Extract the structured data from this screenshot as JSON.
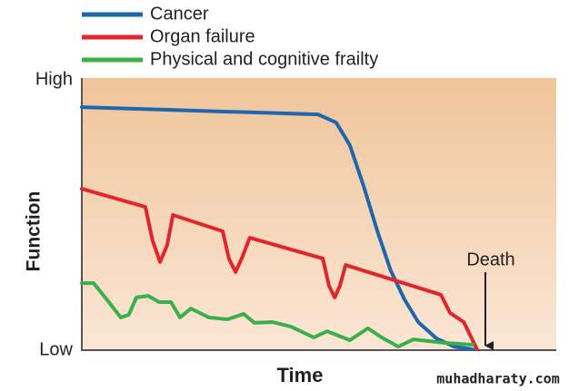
{
  "chart_data": {
    "type": "line",
    "x_label": "Time",
    "y_label": "Function",
    "xlim": [
      0,
      100
    ],
    "ylim": [
      0,
      100
    ],
    "yticks": [
      {
        "value": 100,
        "label": "High"
      },
      {
        "value": 0,
        "label": "Low"
      }
    ],
    "annotation": "Death",
    "watermark": "muhadharaty.com",
    "series": [
      {
        "name": "Cancer",
        "color": "#1f66ad",
        "x": [
          0,
          49.8,
          53.6,
          56.5,
          59.4,
          62.3,
          65.1,
          68,
          70.9,
          74.7,
          78.5,
          82.4
        ],
        "values": [
          89.9,
          87.2,
          84.2,
          75.8,
          60.7,
          44,
          29.5,
          18.8,
          10.4,
          4.4,
          1.3,
          0.3
        ]
      },
      {
        "name": "Organ failure",
        "color": "#e0262b",
        "x": [
          0,
          13.4,
          14.9,
          16.5,
          18,
          19.2,
          29.7,
          31,
          32.4,
          33.7,
          35.4,
          50.8,
          52.1,
          53.3,
          54.4,
          55.6,
          75.7,
          77.6,
          80.5,
          83.3
        ],
        "values": [
          59.7,
          53,
          40.6,
          32.6,
          38.9,
          50,
          44,
          33.9,
          28.9,
          33.9,
          41.6,
          33.9,
          23.8,
          19.5,
          23.8,
          31.5,
          20.5,
          13.8,
          10.4,
          0.3
        ]
      },
      {
        "name": "Physical and cognitive frailty",
        "color": "#3bb04a",
        "x": [
          0,
          2.5,
          5.7,
          8.2,
          9.9,
          11.5,
          14,
          16.3,
          18.8,
          20.7,
          23,
          26.8,
          30.7,
          34.1,
          36.4,
          40.2,
          44.1,
          48.9,
          51.7,
          56.5,
          60.3,
          63.2,
          66.7,
          69.9,
          76.6,
          82.4
        ],
        "values": [
          24.8,
          24.8,
          17.8,
          12.1,
          13.1,
          19.5,
          20.1,
          17.8,
          17.8,
          12.1,
          15.4,
          12.1,
          11.4,
          13.4,
          10.1,
          10.4,
          8.7,
          4.7,
          7,
          3.7,
          8.1,
          4.7,
          1.3,
          4,
          2.7,
          2
        ]
      }
    ]
  }
}
